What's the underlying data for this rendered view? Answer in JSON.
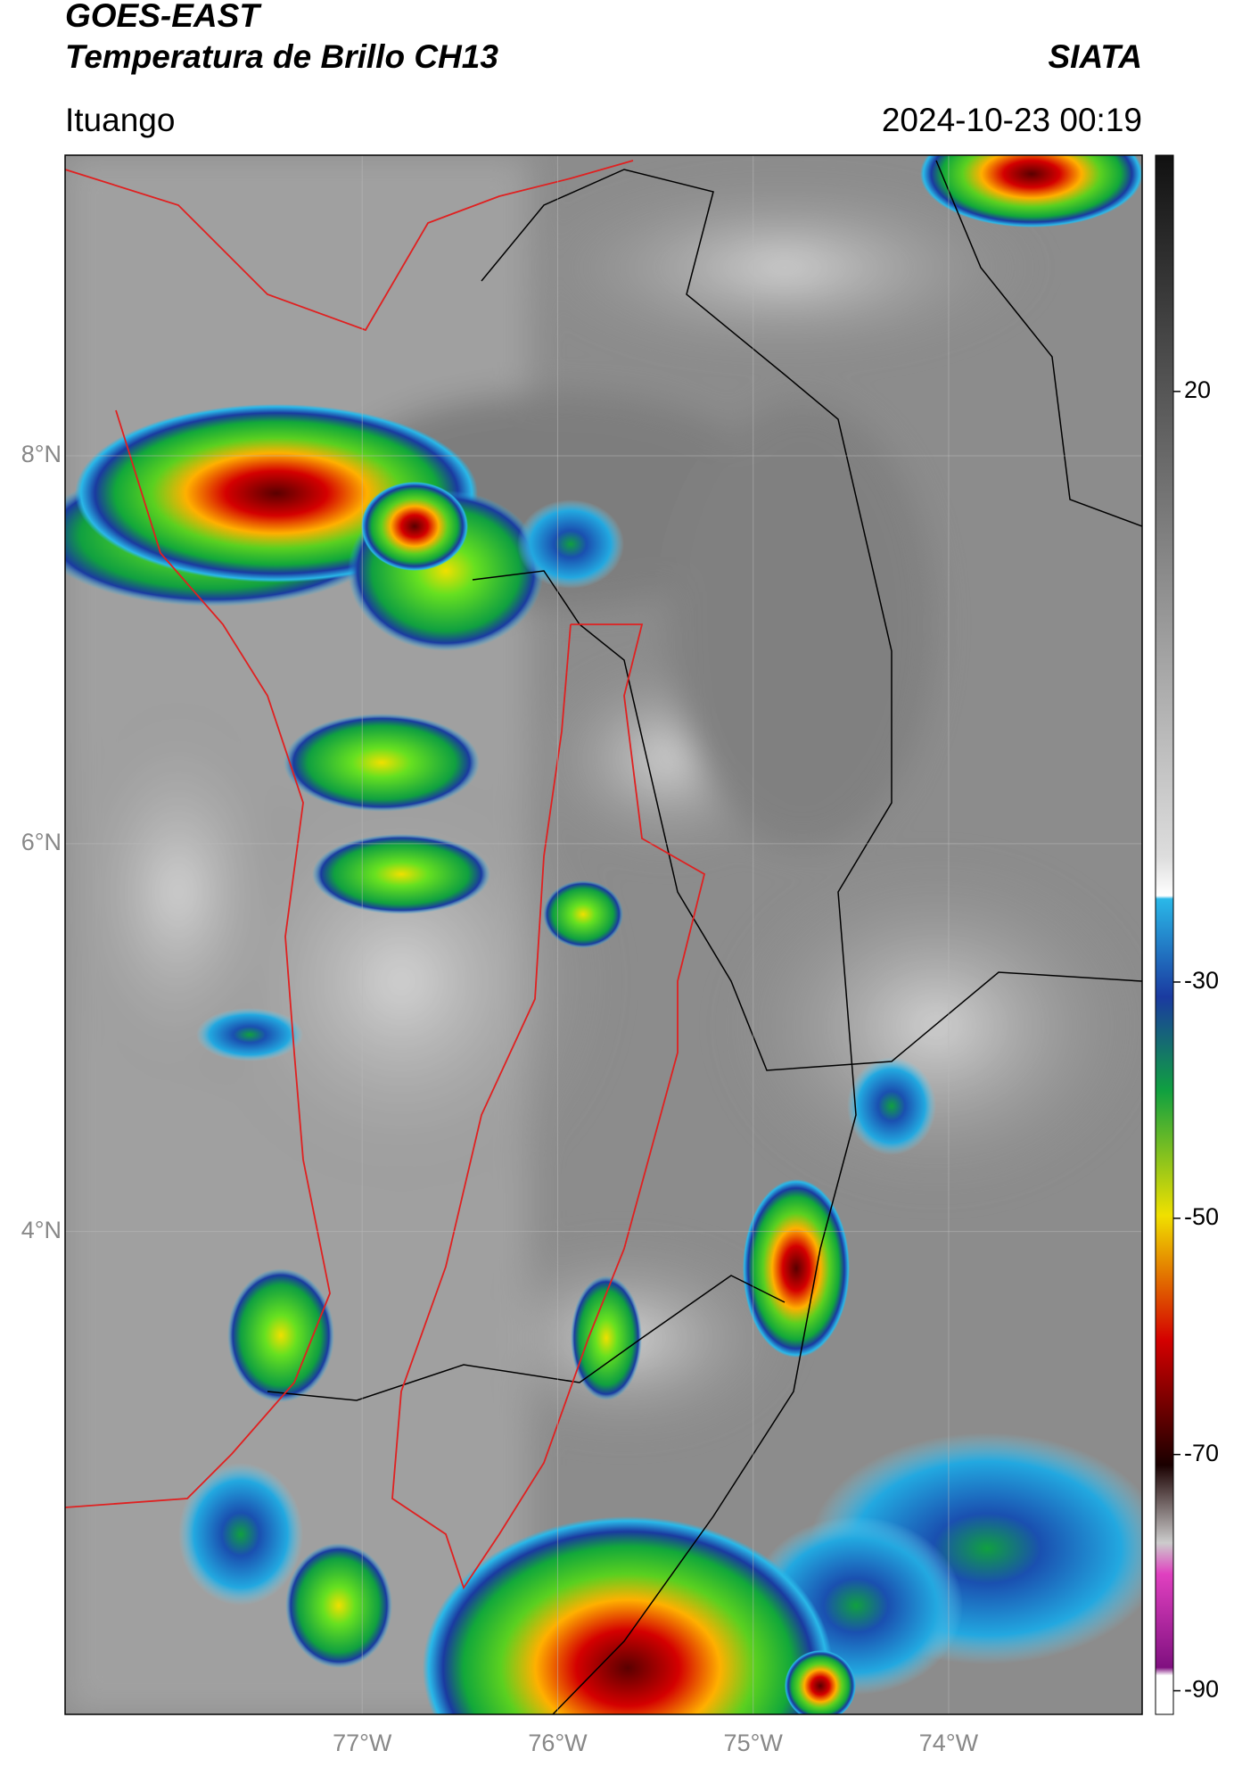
{
  "header": {
    "satellite": "GOES-EAST",
    "product": "Temperatura de Brillo CH13",
    "source": "SIATA",
    "location": "Ituango",
    "datetime": "2024-10-23 00:19"
  },
  "map": {
    "xlim": [
      -78.52,
      -73.01
    ],
    "ylim": [
      1.51,
      9.55
    ],
    "xticks": [
      {
        "value": -77,
        "label": "77°W"
      },
      {
        "value": -76,
        "label": "76°W"
      },
      {
        "value": -75,
        "label": "75°W"
      },
      {
        "value": -74,
        "label": "74°W"
      }
    ],
    "yticks": [
      {
        "value": 8,
        "label": "8°N"
      },
      {
        "value": 6,
        "label": "6°N"
      },
      {
        "value": 4,
        "label": "4°N"
      }
    ],
    "grid": true
  },
  "colorbar": {
    "clim": [
      -92,
      40
    ],
    "ticks": [
      20,
      -30,
      -50,
      -70,
      -90
    ]
  }
}
